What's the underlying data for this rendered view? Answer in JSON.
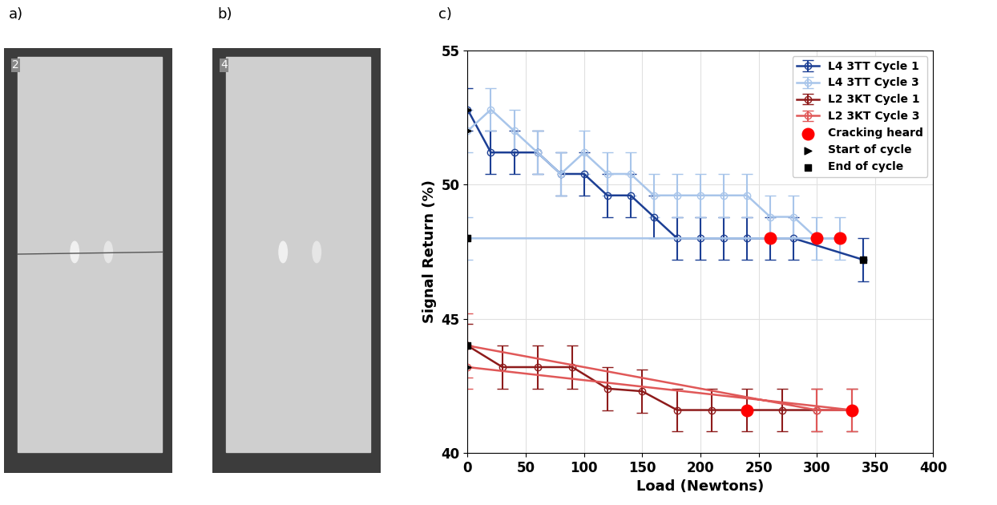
{
  "panel_labels": [
    "a)",
    "b)",
    "c)"
  ],
  "specimens": [
    {
      "label": "2",
      "cracked": true
    },
    {
      "label": "4",
      "cracked": false
    }
  ],
  "chart_data": {
    "type": "line",
    "xlabel": "Load (Newtons)",
    "ylabel": "Signal Return (%)",
    "xlim": [
      0,
      400
    ],
    "xticks": [
      0,
      50,
      100,
      150,
      200,
      250,
      300,
      350,
      400
    ],
    "ylim": [
      40,
      55
    ],
    "yticks": [
      40,
      45,
      50,
      55
    ],
    "grid": true,
    "legend": "upper right",
    "series": [
      {
        "name": "L4 3TT Cycle 1",
        "color": "#1c3f94",
        "marker": "circle",
        "type": "line",
        "x": [
          0,
          20,
          40,
          60,
          80,
          100,
          120,
          140,
          160,
          180,
          200,
          220,
          240,
          260,
          280,
          340
        ],
        "values": [
          52.8,
          51.2,
          51.2,
          51.2,
          50.4,
          50.4,
          49.6,
          49.6,
          48.8,
          48.0,
          48.0,
          48.0,
          48.0,
          48.0,
          48.0,
          47.2
        ],
        "errors": [
          0.8,
          0.8,
          0.8,
          0.8,
          0.8,
          0.8,
          0.8,
          0.8,
          0.8,
          0.8,
          0.8,
          0.8,
          0.8,
          0.8,
          0.8,
          0.8
        ]
      },
      {
        "name": "L4 3TT Cycle 3",
        "color": "#a8c5ea",
        "marker": "circle",
        "type": "line",
        "x": [
          0,
          20,
          40,
          60,
          80,
          100,
          120,
          140,
          160,
          180,
          200,
          220,
          240,
          260,
          280,
          300,
          320,
          0
        ],
        "values": [
          52.0,
          52.8,
          52.0,
          51.2,
          50.4,
          51.2,
          50.4,
          50.4,
          49.6,
          49.6,
          49.6,
          49.6,
          49.6,
          48.8,
          48.8,
          48.0,
          48.0,
          48.0
        ],
        "errors": [
          0.8,
          0.8,
          0.8,
          0.8,
          0.8,
          0.8,
          0.8,
          0.8,
          0.8,
          0.8,
          0.8,
          0.8,
          0.8,
          0.8,
          0.8,
          0.8,
          0.8,
          0.8
        ]
      },
      {
        "name": "L2 3KT Cycle 1",
        "color": "#8e1b1b",
        "marker": "circle",
        "type": "line",
        "x": [
          0,
          30,
          60,
          90,
          120,
          150,
          180,
          210,
          240,
          270,
          300,
          330
        ],
        "values": [
          44.0,
          43.2,
          43.2,
          43.2,
          42.4,
          42.3,
          41.6,
          41.6,
          41.6,
          41.6,
          41.6,
          41.6
        ],
        "errors": [
          0.8,
          0.8,
          0.8,
          0.8,
          0.8,
          0.8,
          0.8,
          0.8,
          0.8,
          0.8,
          0.8,
          0.8
        ]
      },
      {
        "name": "L2 3KT Cycle 3",
        "color": "#e05858",
        "marker": "circle",
        "type": "line",
        "x": [
          0,
          330,
          300,
          0
        ],
        "values": [
          43.2,
          41.6,
          41.6,
          44.0
        ],
        "errors": [
          0.8,
          0.8,
          0.8,
          1.2
        ]
      },
      {
        "name": "Cracking heard",
        "color": "#ff0000",
        "marker": "circle",
        "type": "scatter",
        "x": [
          260,
          300,
          320,
          240,
          330
        ],
        "values": [
          48.0,
          48.0,
          48.0,
          41.6,
          41.6
        ]
      },
      {
        "name": "Start of cycle",
        "color": "#000000",
        "marker": "triangle",
        "type": "scatter",
        "x": [
          0,
          0,
          0
        ],
        "values": [
          52.8,
          52.0,
          43.2
        ]
      },
      {
        "name": "End of cycle",
        "color": "#000000",
        "marker": "square",
        "type": "scatter",
        "x": [
          0,
          0,
          340
        ],
        "values": [
          48.0,
          44.0,
          47.2
        ]
      }
    ]
  }
}
